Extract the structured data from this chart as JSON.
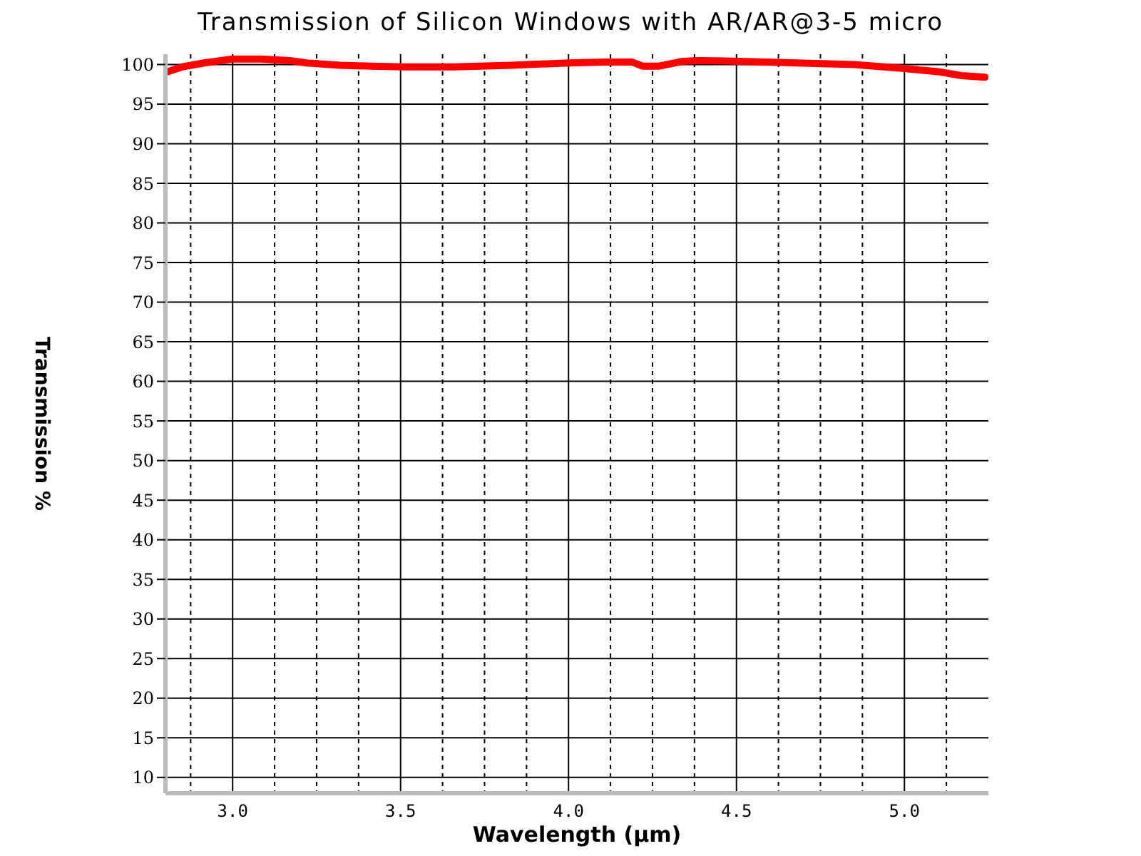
{
  "chart_data": {
    "type": "line",
    "title": "Transmission of Silicon Windows with AR/AR@3-5 micro",
    "xlabel": "Wavelength (μm)",
    "ylabel": "Transmission %",
    "x": [
      2.8,
      2.85,
      2.915,
      3.0,
      3.085,
      3.17,
      3.22,
      3.32,
      3.41,
      3.51,
      3.66,
      3.83,
      4.0,
      4.11,
      4.19,
      4.22,
      4.27,
      4.34,
      4.39,
      4.51,
      4.68,
      4.85,
      5.0,
      5.1,
      5.17,
      5.24
    ],
    "series": [
      {
        "color": "#ff0000",
        "values": [
          99.0,
          99.7,
          100.2,
          100.7,
          100.7,
          100.5,
          100.2,
          99.9,
          99.8,
          99.7,
          99.7,
          99.9,
          100.2,
          100.3,
          100.3,
          99.8,
          99.8,
          100.4,
          100.5,
          100.4,
          100.2,
          100.0,
          99.5,
          99.1,
          98.6,
          98.4
        ]
      }
    ],
    "xlim": [
      2.8,
      5.25
    ],
    "xticks": [
      {
        "value": 2.875,
        "label": null
      },
      {
        "value": 3,
        "label": "3.0"
      },
      {
        "value": 3.125,
        "label": null
      },
      {
        "value": 3.25,
        "label": null
      },
      {
        "value": 3.375,
        "label": null
      },
      3.5,
      {
        "value": 3.625,
        "label": null
      },
      {
        "value": 3.75,
        "label": null
      },
      {
        "value": 3.875,
        "label": null
      },
      {
        "value": 4,
        "label": "4.0"
      },
      {
        "value": 4.125,
        "label": null
      },
      {
        "value": 4.25,
        "label": null
      },
      {
        "value": 4.375,
        "label": null
      },
      4.5,
      {
        "value": 4.625,
        "label": null
      },
      {
        "value": 4.75,
        "label": null
      },
      {
        "value": 4.875,
        "label": null
      },
      {
        "value": 5,
        "label": "5.0"
      },
      {
        "value": 5.125,
        "label": null
      }
    ],
    "ylim": [
      8,
      101.3
    ],
    "yticks": [
      10,
      15,
      20,
      25,
      30,
      35,
      40,
      45,
      50,
      55,
      60,
      65,
      70,
      75,
      80,
      85,
      90,
      95,
      100
    ],
    "grid": true,
    "marker": "none",
    "line_style": "solid"
  }
}
